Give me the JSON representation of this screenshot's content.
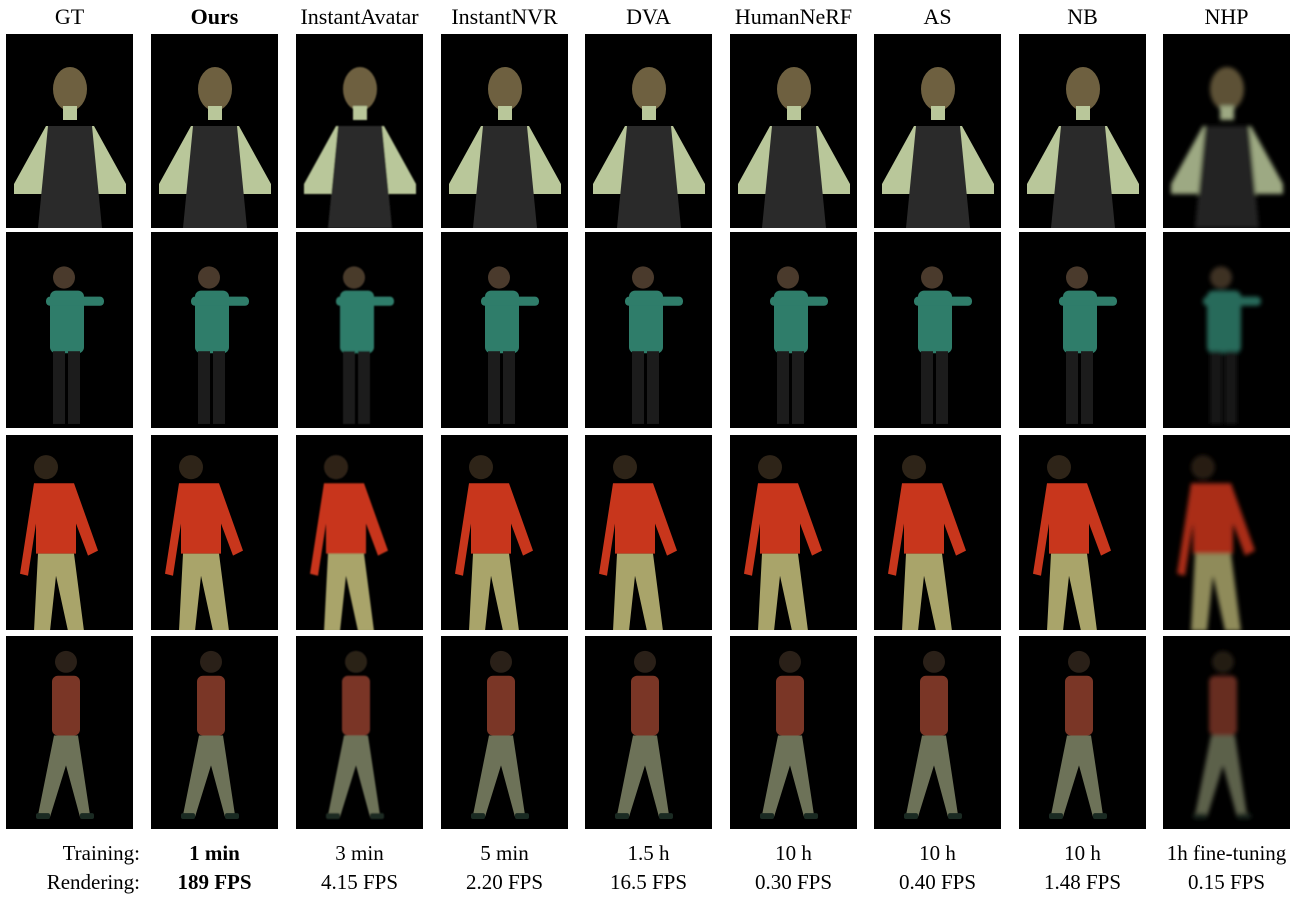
{
  "row_labels": {
    "training": "Training:",
    "rendering": "Rendering:"
  },
  "methods": [
    {
      "name": "GT",
      "training": "",
      "rendering": "",
      "bold": false
    },
    {
      "name": "Ours",
      "training": "1 min",
      "rendering": "189 FPS",
      "bold": true
    },
    {
      "name": "InstantAvatar",
      "training": "3 min",
      "rendering": "4.15 FPS",
      "bold": false
    },
    {
      "name": "InstantNVR",
      "training": "5 min",
      "rendering": "2.20 FPS",
      "bold": false
    },
    {
      "name": "DVA",
      "training": "1.5 h",
      "rendering": "16.5 FPS",
      "bold": false
    },
    {
      "name": "HumanNeRF",
      "training": "10 h",
      "rendering": "0.30 FPS",
      "bold": false
    },
    {
      "name": "AS",
      "training": "10 h",
      "rendering": "0.40 FPS",
      "bold": false
    },
    {
      "name": "NB",
      "training": "10 h",
      "rendering": "1.48 FPS",
      "bold": false
    },
    {
      "name": "NHP",
      "training": "1h fine-tuning",
      "rendering": "0.15 FPS",
      "bold": false
    }
  ],
  "subjects": [
    {
      "kind": "portrait",
      "top_color": "#2a2a2a",
      "skin": "#b9c79a",
      "bottom_color": "#1a1a1a"
    },
    {
      "kind": "arms-forward",
      "top_color": "#2f7d6a",
      "skin": "#c89a7a",
      "bottom_color": "#1c1c1c"
    },
    {
      "kind": "walking-sweater",
      "top_color": "#c8361c",
      "skin": "#c9a080",
      "bottom_color": "#a9a46a"
    },
    {
      "kind": "walking-side",
      "top_color": "#7a3626",
      "skin": "#c8a088",
      "bottom_color": "#6d7258"
    }
  ]
}
